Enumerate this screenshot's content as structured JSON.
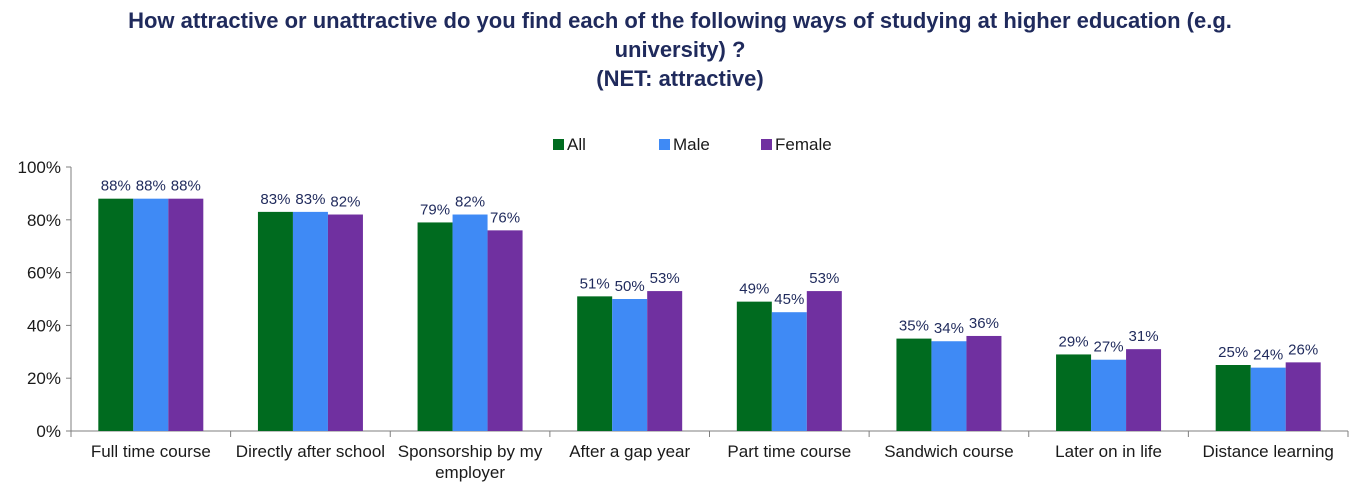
{
  "chart_data": {
    "type": "bar",
    "title": "How attractive or unattractive do you find each of the following ways of studying at higher education (e.g. university) ?",
    "title_lines": [
      "How attractive or unattractive do you find each of the following ways of studying at higher education (e.g.",
      "university) ?",
      "(NET: attractive)"
    ],
    "subtitle": "(NET: attractive)",
    "xlabel": "",
    "ylabel": "",
    "categories": [
      "Full time course",
      "Directly after school",
      "Sponsorship by my employer",
      "After a gap year",
      "Part time course",
      "Sandwich course",
      "Later on in life",
      "Distance learning"
    ],
    "category_label_lines": [
      [
        "Full time course"
      ],
      [
        "Directly after school"
      ],
      [
        "Sponsorship by my",
        "employer"
      ],
      [
        "After a gap year"
      ],
      [
        "Part time course"
      ],
      [
        "Sandwich course"
      ],
      [
        "Later on in life"
      ],
      [
        "Distance learning"
      ]
    ],
    "series": [
      {
        "name": "All",
        "color": "#006b1f",
        "values": [
          88,
          83,
          79,
          51,
          49,
          35,
          29,
          25
        ]
      },
      {
        "name": "Male",
        "color": "#3f8af5",
        "values": [
          88,
          83,
          82,
          50,
          45,
          34,
          27,
          24
        ]
      },
      {
        "name": "Female",
        "color": "#7030a0",
        "values": [
          88,
          82,
          76,
          53,
          53,
          36,
          31,
          26
        ]
      }
    ],
    "ylim": [
      0,
      100
    ],
    "yticks": [
      0,
      20,
      40,
      60,
      80,
      100
    ],
    "ytick_labels": [
      "0%",
      "20%",
      "40%",
      "60%",
      "80%",
      "100%"
    ],
    "value_suffix": "%",
    "legend_position": "top-center",
    "grid": false
  }
}
